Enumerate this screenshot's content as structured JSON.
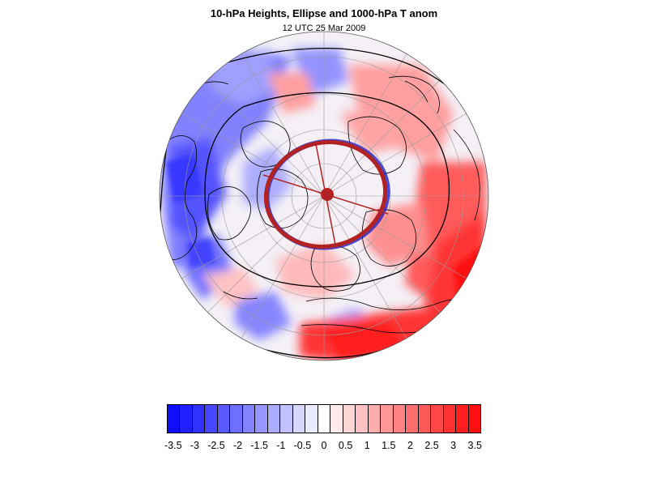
{
  "header": {
    "title": "10-hPa Heights, Ellipse and 1000-hPa T anom",
    "subtitle": "12 UTC 25 Mar 2009"
  },
  "map": {
    "projection": "polar stereographic (north pole)",
    "ellipse_color": "#b22222",
    "contour_color": "#000000",
    "graticule_color": "#9a9a9a",
    "coastline_color": "#000000"
  },
  "colorbar": {
    "colors": [
      "#0f0fff",
      "#1f1fff",
      "#3030ff",
      "#4747ff",
      "#5a5aff",
      "#6e6eff",
      "#8383ff",
      "#9797ff",
      "#acacff",
      "#c1c1ff",
      "#d6d6ff",
      "#ebebff",
      "#ffffff",
      "#ffebeb",
      "#ffd6d6",
      "#ffc1c1",
      "#ffacac",
      "#ff9797",
      "#ff8383",
      "#ff6e6e",
      "#ff5a5a",
      "#ff4747",
      "#ff3030",
      "#ff1f1f",
      "#ff0f0f"
    ],
    "labels": [
      "-3.5",
      "-3",
      "-2.5",
      "-2",
      "-1.5",
      "-1",
      "-0.5",
      "0",
      "0.5",
      "1",
      "1.5",
      "2",
      "2.5",
      "3",
      "3.5"
    ]
  }
}
